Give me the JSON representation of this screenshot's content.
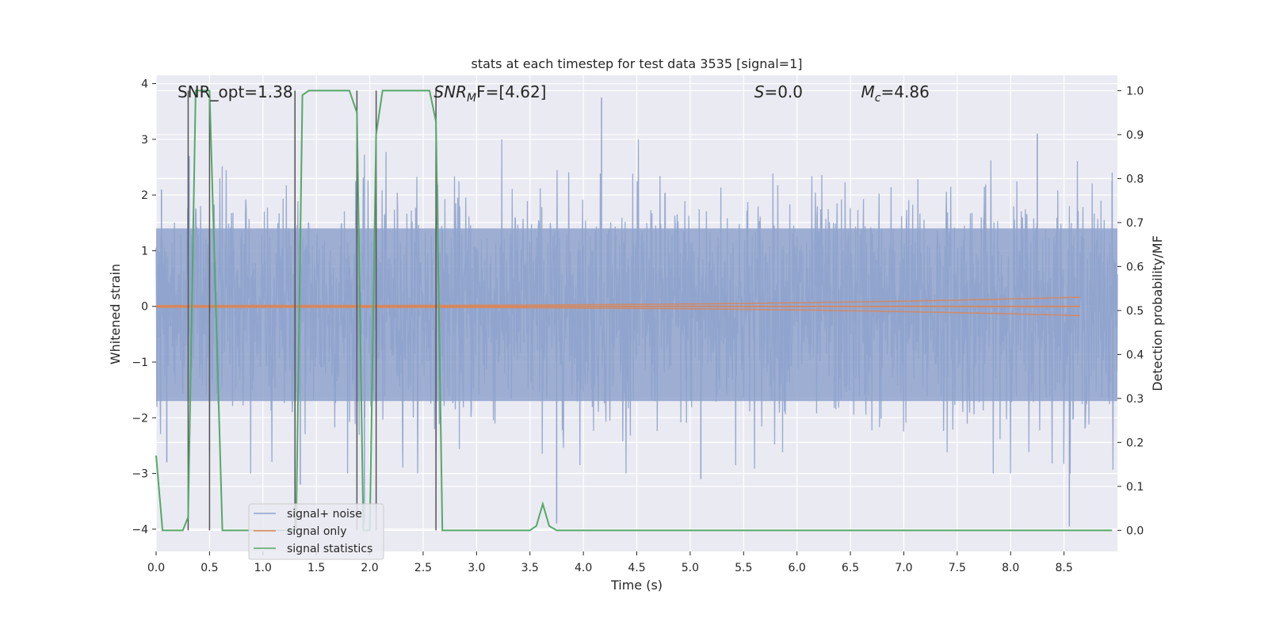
{
  "chart_data": {
    "type": "line",
    "title": "stats at each timestep for test data 3535 [signal=1]",
    "xlabel": "Time (s)",
    "ylabel_left": "Whitened strain",
    "ylabel_right": "Detection probability/MF",
    "xlim": [
      0,
      9.0
    ],
    "ylim_left": [
      -4.4,
      4.15
    ],
    "ylim_right": [
      -0.048,
      1.035
    ],
    "x_ticks": [
      "0.0",
      "0.5",
      "1.0",
      "1.5",
      "2.0",
      "2.5",
      "3.0",
      "3.5",
      "4.0",
      "4.5",
      "5.0",
      "5.5",
      "6.0",
      "6.5",
      "7.0",
      "7.5",
      "8.0",
      "8.5"
    ],
    "x_tick_values": [
      0,
      0.5,
      1,
      1.5,
      2,
      2.5,
      3,
      3.5,
      4,
      4.5,
      5,
      5.5,
      6,
      6.5,
      7,
      7.5,
      8,
      8.5
    ],
    "y_left_ticks": [
      "4",
      "3",
      "2",
      "1",
      "0",
      "−1",
      "−2",
      "−3",
      "−4"
    ],
    "y_left_tick_values": [
      4,
      3,
      2,
      1,
      0,
      -1,
      -2,
      -3,
      -4
    ],
    "y_right_ticks": [
      "1.0",
      "0.9",
      "0.8",
      "0.7",
      "0.6",
      "0.5",
      "0.4",
      "0.3",
      "0.2",
      "0.1",
      "0.0"
    ],
    "y_right_tick_values": [
      1.0,
      0.9,
      0.8,
      0.7,
      0.6,
      0.5,
      0.4,
      0.3,
      0.2,
      0.1,
      0.0
    ],
    "grid": true,
    "legend_position": "lower-left",
    "annotations": [
      {
        "text": "SNR_opt=1.38",
        "x": 0.2,
        "y": 3.85
      },
      {
        "text_main": "SNR",
        "text_sub": "M",
        "text_rest": "F=[4.62]",
        "x": 2.6,
        "y": 3.85,
        "italic_main": true
      },
      {
        "text_main": "S",
        "text_sub": "",
        "text_rest": "=0.0",
        "x": 5.6,
        "y": 3.85,
        "italic_main": true
      },
      {
        "text_main": "M",
        "text_sub": "c",
        "text_rest": "=4.86",
        "x": 6.6,
        "y": 3.85,
        "italic_main": true
      }
    ],
    "vertical_markers": [
      0.3,
      0.5,
      1.3,
      1.88,
      2.06,
      2.62
    ],
    "series": [
      {
        "name": "signal+ noise",
        "color": "#8fa3cc",
        "style": "noise",
        "x_range": [
          0,
          9.0
        ],
        "amplitude_sigma": 1.0,
        "peaks": [
          {
            "x": 0.05,
            "y": 2.1
          },
          {
            "x": 0.1,
            "y": -2.8
          },
          {
            "x": 0.31,
            "y": 2.7
          },
          {
            "x": 0.5,
            "y": -2.6
          },
          {
            "x": 1.3,
            "y": 2.9
          },
          {
            "x": 1.35,
            "y": -3.2
          },
          {
            "x": 1.95,
            "y": -3.9
          },
          {
            "x": 3.75,
            "y": -3.9
          },
          {
            "x": 4.17,
            "y": 3.75
          },
          {
            "x": 5.1,
            "y": -3.1
          },
          {
            "x": 8.25,
            "y": 3.1
          },
          {
            "x": 8.55,
            "y": -3.95
          },
          {
            "x": 8.95,
            "y": 2.25
          }
        ]
      },
      {
        "name": "signal only",
        "color": "#dd8452",
        "style": "chirp",
        "x_end": 8.65,
        "max_amplitude": 0.15
      },
      {
        "name": "signal statistics",
        "color": "#55a868",
        "axis": "right",
        "x": [
          0.0,
          0.06,
          0.12,
          0.25,
          0.3,
          0.37,
          0.45,
          0.5,
          0.56,
          0.62,
          0.68,
          1.0,
          1.25,
          1.31,
          1.37,
          1.43,
          1.55,
          1.75,
          1.81,
          1.88,
          1.94,
          2.0,
          2.06,
          2.12,
          2.18,
          2.5,
          2.56,
          2.62,
          2.68,
          2.75,
          3.0,
          3.5,
          3.56,
          3.62,
          3.68,
          3.75,
          4.0,
          8.95
        ],
        "y": [
          0.17,
          0.0,
          0.0,
          0.0,
          0.03,
          1.0,
          1.0,
          1.0,
          0.5,
          0.0,
          0.0,
          0.0,
          0.0,
          0.0,
          0.99,
          1.0,
          1.0,
          1.0,
          1.0,
          0.95,
          0.0,
          0.0,
          0.9,
          1.0,
          1.0,
          1.0,
          1.0,
          0.93,
          0.0,
          0.0,
          0.0,
          0.0,
          0.01,
          0.06,
          0.01,
          0.0,
          0.0,
          0.0
        ]
      }
    ]
  },
  "legend": {
    "items": [
      {
        "label": "signal+ noise",
        "color": "#8fa3cc"
      },
      {
        "label": "signal only",
        "color": "#dd8452"
      },
      {
        "label": "signal statistics",
        "color": "#55a868"
      }
    ]
  }
}
